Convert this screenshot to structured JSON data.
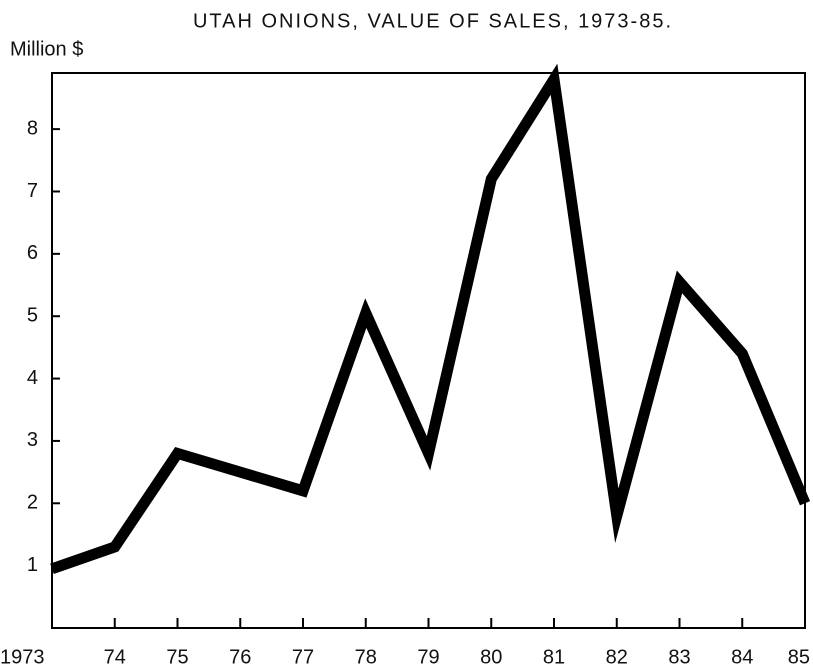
{
  "chart_data": {
    "type": "line",
    "title": "UTAH ONIONS, VALUE OF SALES, 1973-85.",
    "y_label": "Million $",
    "categories": [
      "1973",
      "74",
      "75",
      "76",
      "77",
      "78",
      "79",
      "80",
      "81",
      "82",
      "83",
      "84",
      "85"
    ],
    "series": [
      {
        "name": "Value of sales",
        "color": "#000000",
        "values": [
          0.95,
          1.3,
          2.8,
          2.5,
          2.2,
          5.05,
          2.8,
          7.2,
          8.8,
          1.8,
          5.55,
          4.4,
          2.0
        ]
      }
    ],
    "ylim": [
      0,
      8.9
    ],
    "yticks": [
      1,
      2,
      3,
      4,
      5,
      6,
      7,
      8
    ],
    "legend": false
  }
}
